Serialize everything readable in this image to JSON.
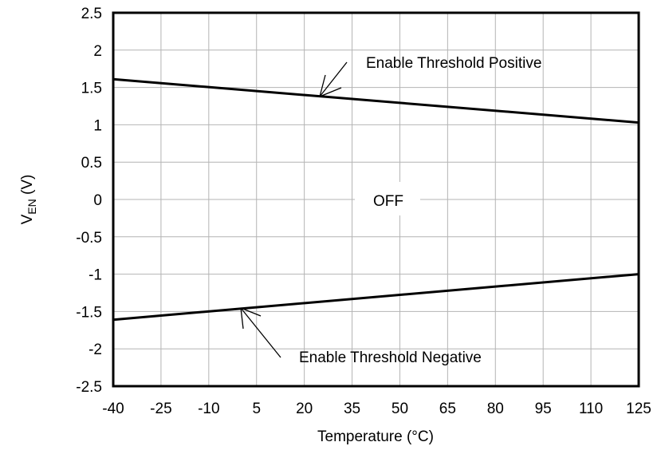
{
  "chart_data": {
    "type": "line",
    "title": "",
    "xlabel": "Temperature (°C)",
    "ylabel_main": "V",
    "ylabel_sub": "EN",
    "ylabel_unit": " (V)",
    "xlim": [
      -40,
      125
    ],
    "ylim": [
      -2.5,
      2.5
    ],
    "xticks": [
      "-40",
      "-25",
      "-10",
      "5",
      "20",
      "35",
      "50",
      "65",
      "80",
      "95",
      "110",
      "125"
    ],
    "yticks": [
      "2.5",
      "2",
      "1.5",
      "1",
      "0.5",
      "0",
      "-0.5",
      "-1",
      "-1.5",
      "-2",
      "-2.5"
    ],
    "grid": true,
    "series": [
      {
        "name": "Enable Threshold Positive",
        "x": [
          -40,
          125
        ],
        "y": [
          1.61,
          1.03
        ]
      },
      {
        "name": "Enable Threshold Negative",
        "x": [
          -40,
          125
        ],
        "y": [
          -1.61,
          -1.0
        ]
      }
    ],
    "annotations": [
      {
        "text": "OFF"
      }
    ],
    "line_color": "#000000",
    "grid_color": "#b4b4b4"
  }
}
